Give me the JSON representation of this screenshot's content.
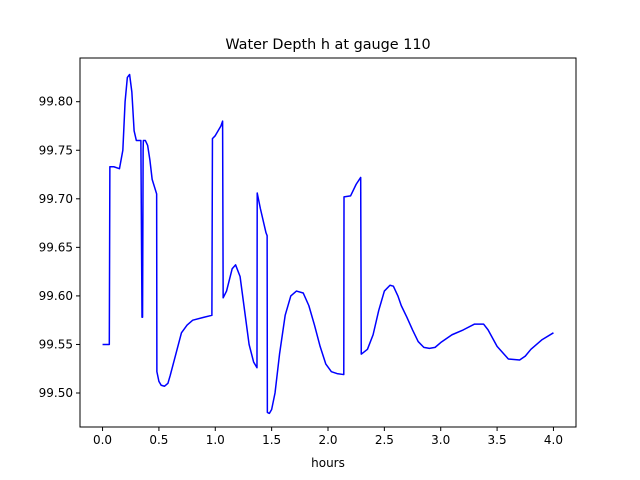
{
  "chart_data": {
    "type": "line",
    "title": "Water Depth h at gauge 110",
    "xlabel": "hours",
    "ylabel": "",
    "xlim": [
      -0.2,
      4.2
    ],
    "ylim": [
      99.465,
      99.845
    ],
    "xticks": [
      0.0,
      0.5,
      1.0,
      1.5,
      2.0,
      2.5,
      3.0,
      3.5,
      4.0
    ],
    "xtick_labels": [
      "0.0",
      "0.5",
      "1.0",
      "1.5",
      "2.0",
      "2.5",
      "3.0",
      "3.5",
      "4.0"
    ],
    "yticks": [
      99.5,
      99.55,
      99.6,
      99.65,
      99.7,
      99.75,
      99.8
    ],
    "ytick_labels": [
      "99.50",
      "99.55",
      "99.60",
      "99.65",
      "99.70",
      "99.75",
      "99.80"
    ],
    "grid": false,
    "legend": "none",
    "series": [
      {
        "color": "#0000ff",
        "x": [
          0.0,
          0.06,
          0.065,
          0.1,
          0.15,
          0.18,
          0.2,
          0.22,
          0.24,
          0.26,
          0.28,
          0.3,
          0.34,
          0.35,
          0.355,
          0.36,
          0.362,
          0.38,
          0.4,
          0.42,
          0.44,
          0.48,
          0.482,
          0.5,
          0.52,
          0.55,
          0.58,
          0.6,
          0.65,
          0.7,
          0.75,
          0.8,
          0.9,
          0.97,
          0.975,
          1.0,
          1.05,
          1.065,
          1.07,
          1.1,
          1.15,
          1.18,
          1.22,
          1.26,
          1.3,
          1.34,
          1.37,
          1.372,
          1.4,
          1.45,
          1.46,
          1.462,
          1.48,
          1.5,
          1.53,
          1.57,
          1.62,
          1.67,
          1.72,
          1.78,
          1.83,
          1.88,
          1.93,
          1.98,
          2.03,
          2.08,
          2.14,
          2.142,
          2.2,
          2.25,
          2.29,
          2.295,
          2.35,
          2.4,
          2.45,
          2.5,
          2.55,
          2.58,
          2.62,
          2.65,
          2.7,
          2.75,
          2.8,
          2.85,
          2.9,
          2.95,
          3.0,
          3.05,
          3.1,
          3.2,
          3.3,
          3.38,
          3.42,
          3.5,
          3.6,
          3.7,
          3.75,
          3.8,
          3.9,
          4.0
        ],
        "y": [
          99.55,
          99.55,
          99.733,
          99.733,
          99.731,
          99.75,
          99.8,
          99.825,
          99.828,
          99.81,
          99.77,
          99.76,
          99.76,
          99.578,
          99.578,
          99.75,
          99.76,
          99.76,
          99.755,
          99.74,
          99.72,
          99.705,
          99.522,
          99.512,
          99.508,
          99.507,
          99.51,
          99.518,
          99.54,
          99.562,
          99.57,
          99.575,
          99.578,
          99.58,
          99.762,
          99.765,
          99.775,
          99.78,
          99.598,
          99.605,
          99.628,
          99.632,
          99.62,
          99.585,
          99.55,
          99.532,
          99.526,
          99.706,
          99.69,
          99.665,
          99.662,
          99.48,
          99.479,
          99.483,
          99.5,
          99.54,
          99.58,
          99.6,
          99.605,
          99.603,
          99.59,
          99.57,
          99.548,
          99.53,
          99.522,
          99.52,
          99.519,
          99.702,
          99.703,
          99.715,
          99.722,
          99.54,
          99.545,
          99.56,
          99.585,
          99.605,
          99.611,
          99.61,
          99.6,
          99.59,
          99.578,
          99.565,
          99.553,
          99.547,
          99.546,
          99.547,
          99.552,
          99.556,
          99.56,
          99.565,
          99.571,
          99.571,
          99.565,
          99.548,
          99.535,
          99.534,
          99.538,
          99.545,
          99.555,
          99.562
        ]
      }
    ]
  }
}
